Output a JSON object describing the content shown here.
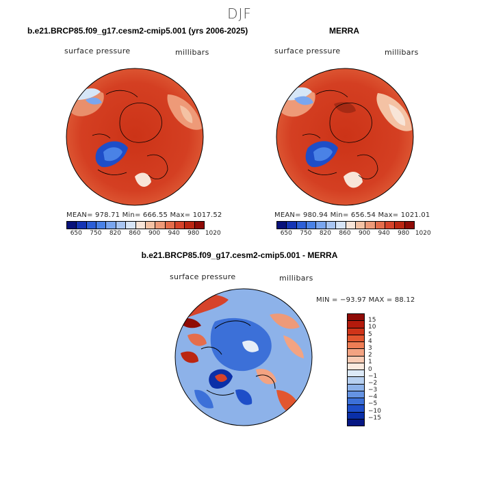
{
  "figure": {
    "season": "DJF"
  },
  "panels": {
    "model": {
      "title": "b.e21.BRCP85.f09_g17.cesm2-cmip5.001 (yrs 2006-2025)",
      "variable": "surface pressure",
      "units": "millibars",
      "stats": "MEAN= 978.71  Min= 666.55  Max= 1017.52"
    },
    "obs": {
      "title": "MERRA",
      "variable": "surface pressure",
      "units": "millibars",
      "stats": "MEAN= 980.94  Min= 656.54  Max= 1021.01"
    },
    "diff": {
      "title": "b.e21.BRCP85.f09_g17.cesm2-cmip5.001 - MERRA",
      "variable": "surface pressure",
      "units": "millibars",
      "stats": "MIN = −93.97 MAX =  88.12"
    }
  },
  "colorbar_abs": {
    "colors": [
      "#08127a",
      "#1535b4",
      "#2d5fd6",
      "#4a82e6",
      "#7aa6ee",
      "#a9c6f2",
      "#d7e5f6",
      "#f8e5d8",
      "#f4c2a4",
      "#ee9a78",
      "#e56d4b",
      "#d6432a",
      "#bb2612",
      "#8f0b06"
    ],
    "labels": [
      "650",
      "750",
      "820",
      "860",
      "900",
      "940",
      "980",
      "1020"
    ]
  },
  "colorbar_diff": {
    "colors": [
      "#8f0b06",
      "#b41a0c",
      "#cf3419",
      "#e2562f",
      "#ee7d55",
      "#f3a382",
      "#f8cbb4",
      "#fbeadf",
      "#dce9f7",
      "#b7d0f0",
      "#8db2e9",
      "#6593e2",
      "#3c70d8",
      "#1e4ec8",
      "#0a2fa8",
      "#061783"
    ],
    "labels": [
      "15",
      "10",
      "5",
      "4",
      "3",
      "2",
      "1",
      "0",
      "−1",
      "−2",
      "−3",
      "−4",
      "−5",
      "−10",
      "−15"
    ]
  }
}
